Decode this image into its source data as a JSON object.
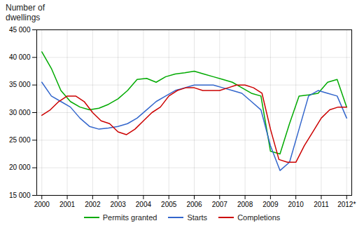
{
  "chart_data": {
    "type": "line",
    "title": "Number of\ndwellings",
    "xlim": [
      1999.8,
      2012.2
    ],
    "xticks": [
      2000,
      2001,
      2002,
      2003,
      2004,
      2005,
      2006,
      2007,
      2008,
      2009,
      2010,
      2011,
      {
        "value": 2012,
        "label": "2012*"
      }
    ],
    "ylim": [
      15000,
      45000
    ],
    "yticks": [
      {
        "value": 15000,
        "label": "15 000"
      },
      {
        "value": 20000,
        "label": "20 000"
      },
      {
        "value": 25000,
        "label": "25 000"
      },
      {
        "value": 30000,
        "label": "30 000"
      },
      {
        "value": 35000,
        "label": "35 000"
      },
      {
        "value": 40000,
        "label": "40 000"
      },
      {
        "value": 45000,
        "label": "45 000"
      }
    ],
    "grid": true,
    "legend": "bottom",
    "series": [
      {
        "name": "Permits granted",
        "color": "#00aa00",
        "x": [
          2000,
          2000.375,
          2000.75,
          2001.125,
          2001.5,
          2001.875,
          2002.25,
          2002.625,
          2003,
          2003.375,
          2003.75,
          2004.125,
          2004.5,
          2004.875,
          2005.25,
          2005.625,
          2006,
          2006.375,
          2006.75,
          2007.125,
          2007.5,
          2007.875,
          2008.25,
          2008.625,
          2009,
          2009.375,
          2009.75,
          2010.125,
          2010.5,
          2010.875,
          2011.25,
          2011.625,
          2012
        ],
        "values": [
          41000,
          38000,
          34000,
          32000,
          31000,
          30500,
          30800,
          31500,
          32500,
          34000,
          36000,
          36200,
          35500,
          36500,
          37000,
          37200,
          37500,
          37000,
          36500,
          36000,
          35500,
          34500,
          33500,
          33000,
          23000,
          22500,
          28000,
          33000,
          33200,
          33500,
          35500,
          36000,
          31000
        ]
      },
      {
        "name": "Starts",
        "color": "#3366cc",
        "x": [
          2000,
          2000.375,
          2000.75,
          2001.125,
          2001.5,
          2001.875,
          2002.25,
          2002.625,
          2003,
          2003.375,
          2003.75,
          2004.125,
          2004.5,
          2004.875,
          2005.25,
          2005.625,
          2006,
          2006.375,
          2006.75,
          2007.125,
          2007.5,
          2007.875,
          2008.25,
          2008.625,
          2009,
          2009.375,
          2009.75,
          2010.125,
          2010.5,
          2010.875,
          2011.25,
          2011.625,
          2012
        ],
        "values": [
          35500,
          33000,
          32000,
          31000,
          29000,
          27500,
          27000,
          27200,
          27500,
          28000,
          29000,
          30500,
          32000,
          33000,
          34000,
          34500,
          35000,
          35000,
          35000,
          34500,
          34000,
          33500,
          32000,
          30500,
          24000,
          19500,
          21000,
          27000,
          33000,
          34000,
          33500,
          33000,
          29000
        ]
      },
      {
        "name": "Completions",
        "color": "#cc0000",
        "x": [
          2000,
          2000.333333333333,
          2000.666666666667,
          2001,
          2001.333333333333,
          2001.666666666667,
          2002,
          2002.333333333333,
          2002.666666666667,
          2003,
          2003.333333333333,
          2003.666666666667,
          2004,
          2004.333333333333,
          2004.666666666667,
          2005,
          2005.333333333333,
          2005.666666666667,
          2006,
          2006.333333333333,
          2006.666666666667,
          2007,
          2007.333333333333,
          2007.666666666667,
          2008,
          2008.333333333333,
          2008.666666666667,
          2009,
          2009.333333333333,
          2009.666666666667,
          2010,
          2010.333333333333,
          2010.666666666667,
          2011,
          2011.333333333333,
          2011.666666666667,
          2012
        ],
        "values": [
          29500,
          30500,
          32000,
          33000,
          33000,
          32000,
          30000,
          28500,
          28000,
          26500,
          26000,
          27000,
          28500,
          30000,
          31000,
          33000,
          34000,
          34500,
          34500,
          34000,
          34000,
          34000,
          34500,
          35000,
          35000,
          34500,
          33500,
          27000,
          21500,
          21000,
          21000,
          24000,
          26500,
          29000,
          30500,
          31000,
          31000
        ]
      }
    ]
  }
}
